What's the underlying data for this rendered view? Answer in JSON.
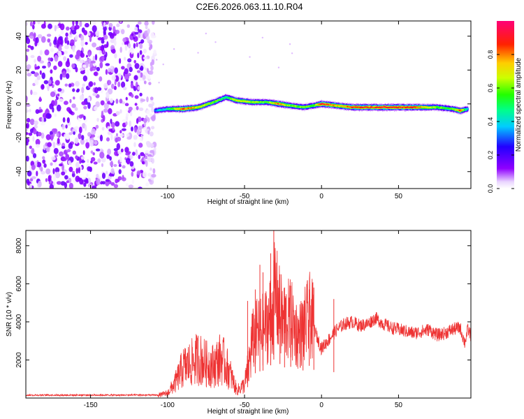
{
  "title": "C2E6.2026.063.11.10.R04",
  "chart_data": [
    {
      "type": "heatmap",
      "xlabel": "Height of straight line (km)",
      "ylabel": "Frequency (Hz)",
      "xlim": [
        -192,
        97
      ],
      "ylim": [
        -50,
        49
      ],
      "xticks": [
        -150,
        -100,
        -50,
        0,
        50
      ],
      "yticks": [
        -40,
        -20,
        0,
        20,
        40
      ],
      "colorbar": {
        "label": "Normalized spectral amplitude",
        "range": [
          0,
          1
        ],
        "ticks": [
          "0.0",
          "0.2",
          "0.4",
          "0.6",
          "0.8"
        ],
        "colormap": "rainbow (violet-blue-cyan-green-yellow-red-magenta)"
      },
      "noise_region": {
        "x_from": -192,
        "x_to": -108,
        "y_from": -50,
        "y_to": 49,
        "amplitude": "0.0-0.15"
      },
      "ridge": [
        {
          "x": -108,
          "y": -4,
          "amp": 0.35
        },
        {
          "x": -100,
          "y": -3,
          "amp": 0.45
        },
        {
          "x": -90,
          "y": -3,
          "amp": 0.85
        },
        {
          "x": -80,
          "y": -2,
          "amp": 0.7
        },
        {
          "x": -70,
          "y": 1,
          "amp": 0.6
        },
        {
          "x": -62,
          "y": 4,
          "amp": 0.5
        },
        {
          "x": -55,
          "y": 2,
          "amp": 0.7
        },
        {
          "x": -45,
          "y": 1,
          "amp": 0.65
        },
        {
          "x": -35,
          "y": 1,
          "amp": 0.55
        },
        {
          "x": -28,
          "y": 0,
          "amp": 0.8
        },
        {
          "x": -20,
          "y": -1,
          "amp": 0.6
        },
        {
          "x": -12,
          "y": -2,
          "amp": 0.6
        },
        {
          "x": -5,
          "y": -1,
          "amp": 0.55
        },
        {
          "x": 0,
          "y": 0,
          "amp": 0.9
        },
        {
          "x": 10,
          "y": -1,
          "amp": 0.75
        },
        {
          "x": 20,
          "y": -2,
          "amp": 0.85
        },
        {
          "x": 40,
          "y": -2,
          "amp": 0.88
        },
        {
          "x": 60,
          "y": -2,
          "amp": 0.85
        },
        {
          "x": 75,
          "y": -2,
          "amp": 0.6
        },
        {
          "x": 85,
          "y": -3,
          "amp": 0.55
        },
        {
          "x": 90,
          "y": -4,
          "amp": 0.85
        },
        {
          "x": 95,
          "y": -3,
          "amp": 0.4
        }
      ]
    },
    {
      "type": "line",
      "xlabel": "Height of straight line (km)",
      "ylabel": "SNR (10 * v/v)",
      "xlim": [
        -192,
        97
      ],
      "ylim": [
        0,
        8800
      ],
      "xticks": [
        -150,
        -100,
        -50,
        0,
        50
      ],
      "yticks": [
        2000,
        4000,
        6000,
        8000
      ],
      "series": [
        {
          "name": "SNR",
          "color": "#ee3333",
          "envelope": [
            [
              -192,
              150
            ],
            [
              -170,
              150
            ],
            [
              -150,
              150
            ],
            [
              -120,
              150
            ],
            [
              -106,
              150
            ],
            [
              -100,
              250
            ],
            [
              -95,
              800
            ],
            [
              -90,
              1600
            ],
            [
              -85,
              1800
            ],
            [
              -80,
              2100
            ],
            [
              -75,
              1800
            ],
            [
              -70,
              1700
            ],
            [
              -65,
              2100
            ],
            [
              -60,
              1400
            ],
            [
              -55,
              400
            ],
            [
              -50,
              700
            ],
            [
              -47,
              1800
            ],
            [
              -45,
              3000
            ],
            [
              -42,
              3400
            ],
            [
              -38,
              3600
            ],
            [
              -35,
              3900
            ],
            [
              -32,
              4500
            ],
            [
              -30,
              5600
            ],
            [
              -28,
              4700
            ],
            [
              -25,
              4000
            ],
            [
              -20,
              4100
            ],
            [
              -15,
              3200
            ],
            [
              -10,
              3900
            ],
            [
              -7,
              4400
            ],
            [
              -5,
              3700
            ],
            [
              -2,
              3000
            ],
            [
              0,
              2600
            ],
            [
              5,
              3100
            ],
            [
              10,
              3600
            ],
            [
              15,
              3900
            ],
            [
              20,
              4000
            ],
            [
              25,
              3800
            ],
            [
              30,
              3900
            ],
            [
              35,
              4200
            ],
            [
              40,
              3900
            ],
            [
              45,
              3700
            ],
            [
              50,
              3600
            ],
            [
              55,
              3500
            ],
            [
              60,
              3400
            ],
            [
              65,
              3500
            ],
            [
              70,
              3600
            ],
            [
              75,
              3300
            ],
            [
              80,
              3400
            ],
            [
              85,
              3600
            ],
            [
              90,
              3700
            ],
            [
              93,
              2900
            ],
            [
              95,
              3600
            ],
            [
              97,
              3300
            ]
          ],
          "peaks": [
            [
              -48,
              5100
            ],
            [
              -43,
              5700
            ],
            [
              -40,
              7000
            ],
            [
              -38,
              6600
            ],
            [
              -33,
              7600
            ],
            [
              -31,
              8800
            ],
            [
              -27,
              6500
            ],
            [
              -24,
              5800
            ],
            [
              -20,
              5900
            ],
            [
              -12,
              4800
            ],
            [
              -8,
              5700
            ],
            [
              -5,
              5800
            ],
            [
              8,
              5200
            ]
          ]
        }
      ]
    }
  ]
}
